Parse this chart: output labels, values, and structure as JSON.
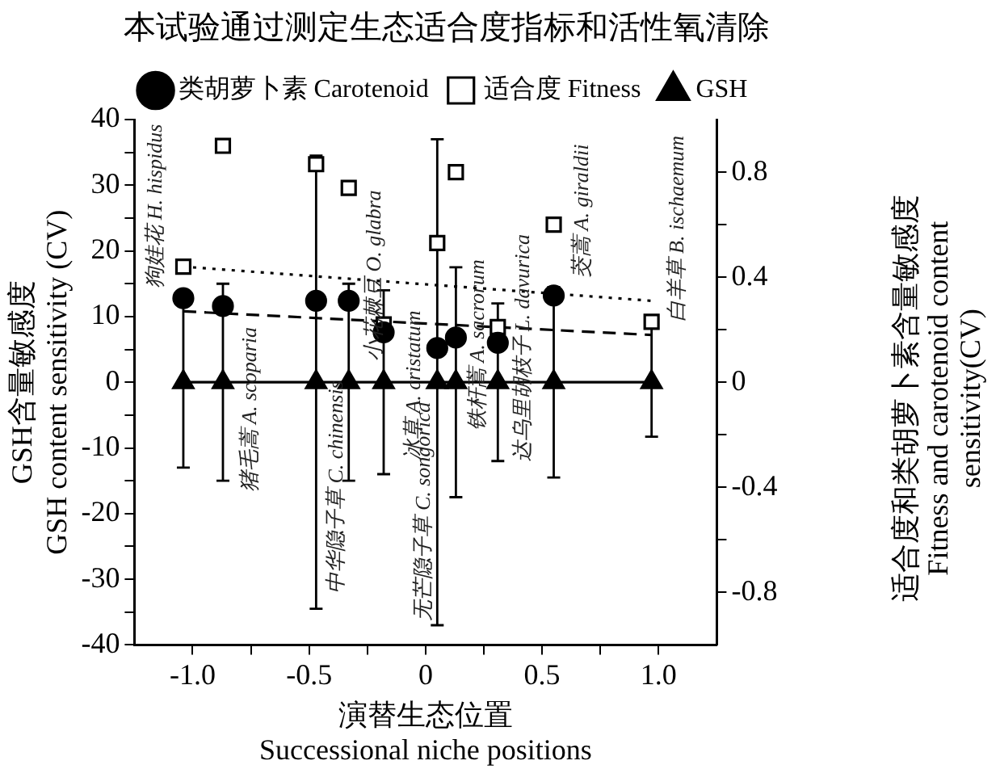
{
  "chart_data": {
    "type": "scatter",
    "title": "本试验通过测定生态适合度指标和活性氧清除",
    "xlabel": "演替生态位置\nSuccessional niche positions",
    "ylabel": "GSH含量敏感度\nGSH content sensitivity (CV)",
    "y2label": "适合度和类胡萝卜素含量敏感度\nFitness and carotenoid content\nsensitivity(CV)",
    "x": [
      -1.04,
      -0.87,
      -0.47,
      -0.33,
      -0.18,
      0.05,
      0.13,
      0.31,
      0.55,
      0.97
    ],
    "series": [
      {
        "name": "适合度 Fitness",
        "type": "scatter",
        "axis": "y2",
        "marker": "square",
        "color": "#000000",
        "values": [
          0.44,
          0.9,
          0.83,
          0.74,
          0.22,
          0.53,
          0.8,
          0.21,
          0.6,
          0.23
        ]
      },
      {
        "name": "类胡萝卜素 Carotenoid",
        "type": "scatter",
        "axis": "y2",
        "marker": "circle",
        "color": "#000000",
        "values": [
          0.32,
          0.29,
          0.31,
          0.31,
          0.19,
          0.13,
          0.17,
          0.15,
          0.33,
          null
        ]
      },
      {
        "name": "GSH",
        "type": "line",
        "axis": "y",
        "marker": "triangle",
        "line_style": "solid",
        "color": "#000000",
        "values": [
          0,
          0,
          0,
          0,
          0,
          0,
          0,
          0,
          0,
          0
        ],
        "errors": [
          13,
          15,
          34.5,
          15,
          14,
          37,
          17.5,
          12,
          14.5,
          8.3
        ]
      },
      {
        "type": "line",
        "axis": "y2",
        "marker": "none",
        "line_style": "dotted",
        "color": "#000000",
        "values": [
          0.44,
          null,
          null,
          null,
          null,
          null,
          null,
          null,
          null,
          0.31
        ]
      },
      {
        "type": "line",
        "axis": "y2",
        "marker": "none",
        "line_style": "dashed",
        "color": "#000000",
        "values": [
          0.27,
          null,
          null,
          null,
          null,
          null,
          null,
          null,
          null,
          0.18
        ]
      }
    ],
    "xlim": [
      -1.25,
      1.25
    ],
    "xticks": [
      {
        "value": -1,
        "label": "-1.0"
      },
      {
        "value": -0.75,
        "label": null
      },
      {
        "value": -0.5,
        "label": "-0.5"
      },
      {
        "value": -0.25,
        "label": null
      },
      0,
      {
        "value": 0.25,
        "label": null
      },
      {
        "value": 0.5,
        "label": "0.5"
      },
      {
        "value": 0.75,
        "label": null
      },
      {
        "value": 1,
        "label": "1.0"
      }
    ],
    "ylim": [
      -40,
      40
    ],
    "yticks": [
      -40,
      {
        "value": -35,
        "label": null
      },
      -30,
      {
        "value": -25,
        "label": null
      },
      -20,
      {
        "value": -15,
        "label": null
      },
      -10,
      {
        "value": -5,
        "label": null
      },
      0,
      {
        "value": 5,
        "label": null
      },
      10,
      {
        "value": 15,
        "label": null
      },
      20,
      {
        "value": 25,
        "label": null
      },
      30,
      {
        "value": 35,
        "label": null
      },
      40
    ],
    "y2lim": [
      -1,
      1
    ],
    "y2ticks": [
      -0.8,
      {
        "value": -0.6,
        "label": null
      },
      -0.4,
      {
        "value": -0.2,
        "label": null
      },
      0,
      {
        "value": 0.2,
        "label": null
      },
      0.4,
      {
        "value": 0.6,
        "label": null
      },
      0.8
    ],
    "grid": false,
    "legend": "top",
    "annotations": [
      "狗娃花 H. hispidus",
      "猪毛蒿 A. scoparia",
      "中华隐子草 C. chinensis",
      "小花棘豆 O. glabra",
      "冰草 A. cristatum",
      "无芒隐子草 C. songorica",
      "铁杆蒿 A. sacrorum",
      "达乌里胡枝子 L. davurica",
      "茭蒿 A. giraldii",
      "白羊草 B. ischaemum"
    ]
  }
}
